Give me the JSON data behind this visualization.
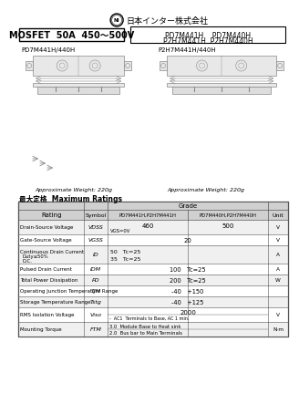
{
  "title_logo": "日本インター株式会社",
  "mosfet_label": "MOSFET  50A  450～500V",
  "pn_line1": "PD7M441H    PD7M440H",
  "pn_line2": "P2H7M441H  P2H7M440H",
  "diagram_label_left": "PD7M441H/440H",
  "diagram_label_right": "P2H7M441H/440H",
  "weight_left": "Approximate Weight: 220g",
  "weight_right": "Approximate Weight: 220g",
  "max_ratings_jp": "最大定格",
  "max_ratings_en": "Maximum Ratings",
  "grade_label": "Grade",
  "hdr_col3": "PD7M441H,P2H7M441H",
  "hdr_col4": "PD7M440H,P2H7M440H",
  "hdr_rating": "Rating",
  "hdr_symbol": "Symbol",
  "hdr_unit": "Unit",
  "bg_color": "#ffffff",
  "text_color": "#000000",
  "header_bg": "#d0d0d0",
  "row_bg_even": "#f0f0f0",
  "row_bg_odd": "#ffffff",
  "border_color": "#555555",
  "diagram_line": "#888888",
  "diagram_fill": "#e8e8e8",
  "diagram_fill2": "#f5f5f5"
}
